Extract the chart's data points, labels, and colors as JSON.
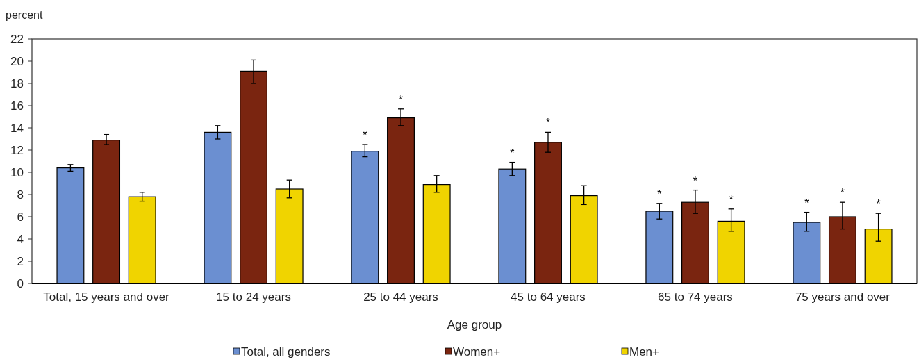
{
  "chart_data": {
    "type": "bar",
    "ylabel": "percent",
    "xlabel": "Age group",
    "categories": [
      "Total, 15 years and over",
      "15 to 24 years",
      "25 to 44 years",
      "45 to 64 years",
      "65 to 74 years",
      "75 years and over"
    ],
    "series": [
      {
        "name": "Total, all genders",
        "color": "#6b8fd1",
        "values": [
          10.4,
          13.6,
          11.9,
          10.3,
          6.5,
          5.5
        ],
        "errors": [
          [
            10.1,
            10.7
          ],
          [
            13.0,
            14.2
          ],
          [
            11.4,
            12.5
          ],
          [
            9.7,
            10.9
          ],
          [
            5.8,
            7.2
          ],
          [
            4.7,
            6.4
          ]
        ],
        "value_labels": [
          null,
          null,
          "*",
          "*",
          "*",
          "*"
        ]
      },
      {
        "name": "Women+",
        "color": "#7a2510",
        "values": [
          12.9,
          19.1,
          14.9,
          12.7,
          7.3,
          6.0
        ],
        "errors": [
          [
            12.5,
            13.4
          ],
          [
            18.0,
            20.1
          ],
          [
            14.2,
            15.7
          ],
          [
            11.8,
            13.6
          ],
          [
            6.3,
            8.4
          ],
          [
            4.9,
            7.3
          ]
        ],
        "value_labels": [
          null,
          null,
          "*",
          "*",
          "*",
          "*"
        ]
      },
      {
        "name": "Men+",
        "color": "#f0d400",
        "values": [
          7.8,
          8.5,
          8.9,
          7.9,
          5.6,
          4.9
        ],
        "errors": [
          [
            7.4,
            8.2
          ],
          [
            7.7,
            9.3
          ],
          [
            8.2,
            9.7
          ],
          [
            7.1,
            8.8
          ],
          [
            4.7,
            6.7
          ],
          [
            3.8,
            6.3
          ]
        ],
        "value_labels": [
          null,
          null,
          null,
          null,
          "*",
          "*"
        ]
      }
    ],
    "ylim": [
      0,
      22
    ],
    "yticks": [
      0,
      2,
      4,
      6,
      8,
      10,
      12,
      14,
      16,
      18,
      20,
      22
    ],
    "grid": false,
    "legend": "bottom"
  }
}
